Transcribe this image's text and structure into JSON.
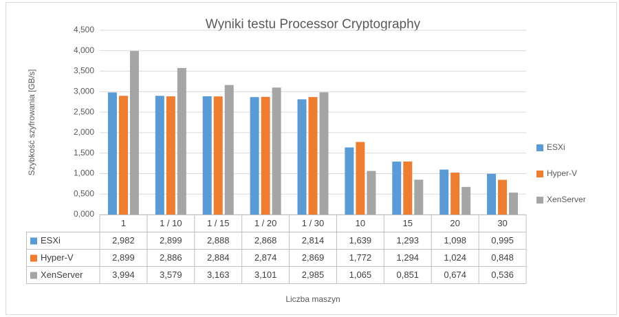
{
  "chart_data": {
    "type": "bar",
    "title": "Wyniki testu Processor Cryptography",
    "y_label": "Szybkość szyfrowania [GB/s]",
    "x_label": "Liczba maszyn",
    "categories": [
      "1",
      "1 / 10",
      "1 / 15",
      "1 / 20",
      "1 / 30",
      "10",
      "15",
      "20",
      "30"
    ],
    "series": [
      {
        "name": "ESXi",
        "color": "#5b9bd5",
        "values": [
          2.982,
          2.899,
          2.888,
          2.868,
          2.814,
          1.639,
          1.293,
          1.098,
          0.995
        ],
        "value_labels": [
          "2,982",
          "2,899",
          "2,888",
          "2,868",
          "2,814",
          "1,639",
          "1,293",
          "1,098",
          "0,995"
        ]
      },
      {
        "name": "Hyper-V",
        "color": "#ed7d31",
        "values": [
          2.899,
          2.886,
          2.884,
          2.874,
          2.869,
          1.772,
          1.294,
          1.024,
          0.848
        ],
        "value_labels": [
          "2,899",
          "2,886",
          "2,884",
          "2,874",
          "2,869",
          "1,772",
          "1,294",
          "1,024",
          "0,848"
        ]
      },
      {
        "name": "XenServer",
        "color": "#a5a5a5",
        "values": [
          3.994,
          3.579,
          3.163,
          3.101,
          2.985,
          1.065,
          0.851,
          0.674,
          0.536
        ],
        "value_labels": [
          "3,994",
          "3,579",
          "3,163",
          "3,101",
          "2,985",
          "1,065",
          "0,851",
          "0,674",
          "0,536"
        ]
      }
    ],
    "ylim": [
      0,
      4.5
    ],
    "yticks": [
      {
        "value": 0,
        "label": "0,000"
      },
      {
        "value": 0.5,
        "label": "0,500"
      },
      {
        "value": 1,
        "label": "1,000"
      },
      {
        "value": 1.5,
        "label": "1,500"
      },
      {
        "value": 2,
        "label": "2,000"
      },
      {
        "value": 2.5,
        "label": "2,500"
      },
      {
        "value": 3,
        "label": "3,000"
      },
      {
        "value": 3.5,
        "label": "3,500"
      },
      {
        "value": 4,
        "label": "4,000"
      },
      {
        "value": 4.5,
        "label": "4,500"
      }
    ],
    "grid": true,
    "legend": "right"
  }
}
